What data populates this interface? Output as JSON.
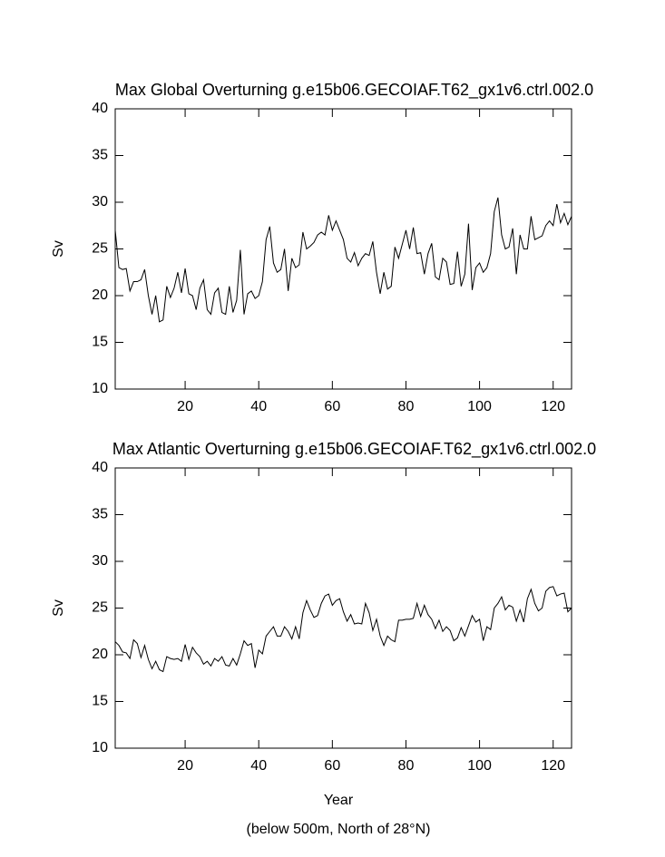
{
  "chart_data": [
    {
      "type": "line",
      "title": "Max Global Overturning g.e15b06.GECOIAF.T62_gx1v6.ctrl.002.0",
      "ylabel": "Sv",
      "xlim": [
        1,
        125
      ],
      "xticks": [
        20,
        40,
        60,
        80,
        100,
        120
      ],
      "ylim": [
        10,
        40
      ],
      "yticks": [
        10,
        15,
        20,
        25,
        30,
        35,
        40
      ],
      "series": [
        {
          "color": "#000000",
          "values": [
            27,
            23,
            22.8,
            22.9,
            20.5,
            21.5,
            21.5,
            21.7,
            22.8,
            20,
            18,
            20,
            17.2,
            17.4,
            21,
            19.8,
            20.8,
            22.5,
            20.3,
            22.9,
            20.2,
            20,
            18.5,
            20.8,
            21.7,
            18.5,
            18,
            20.3,
            20.8,
            18.2,
            18,
            21,
            18.2,
            19.5,
            24.9,
            18,
            20.2,
            20.5,
            19.7,
            20,
            21.5,
            26,
            27.4,
            23.5,
            22.5,
            22.8,
            25,
            20.5,
            24,
            23,
            23.3,
            26.8,
            25,
            25.3,
            25.7,
            26.5,
            26.8,
            26.5,
            28.6,
            27,
            28,
            27,
            26,
            24,
            23.6,
            24.6,
            23.2,
            24,
            24.5,
            24.3,
            25.8,
            22.5,
            20.2,
            22.5,
            20.7,
            21,
            25.2,
            24,
            25.5,
            27,
            25,
            27.3,
            24.5,
            24.6,
            22.3,
            24.5,
            25.6,
            22,
            21.7,
            24,
            23.6,
            21.2,
            21.3,
            24.7,
            21,
            22.3,
            27.7,
            20.6,
            23,
            23.5,
            22.5,
            23,
            24.5,
            29,
            30.5,
            26.5,
            25,
            25.2,
            27.2,
            22.3,
            26.5,
            25,
            25,
            28.5,
            26,
            26.2,
            26.4,
            27.5,
            28,
            27.5,
            29.8,
            27.8,
            28.8,
            27.6,
            28.5
          ]
        }
      ]
    },
    {
      "type": "line",
      "title": "Max Atlantic Overturning g.e15b06.GECOIAF.T62_gx1v6.ctrl.002.0",
      "ylabel": "Sv",
      "xlabel": "Year",
      "note": "(below 500m, North of 28°N)",
      "xlim": [
        1,
        125
      ],
      "xticks": [
        20,
        40,
        60,
        80,
        100,
        120
      ],
      "ylim": [
        10,
        40
      ],
      "yticks": [
        10,
        15,
        20,
        25,
        30,
        35,
        40
      ],
      "series": [
        {
          "color": "#000000",
          "values": [
            21.4,
            21,
            20.3,
            20.2,
            19.6,
            21.6,
            21.2,
            19.7,
            21,
            19.5,
            18.5,
            19.3,
            18.4,
            18.2,
            19.8,
            19.6,
            19.5,
            19.6,
            19.3,
            21.1,
            19.5,
            20.8,
            20.2,
            19.8,
            19,
            19.3,
            18.8,
            19.6,
            19.3,
            19.8,
            18.9,
            18.8,
            19.6,
            18.9,
            20.1,
            21.5,
            21,
            21.2,
            18.6,
            20.5,
            20.1,
            22,
            22.5,
            23,
            22,
            22,
            23,
            22.5,
            21.7,
            23,
            21.7,
            24.5,
            25.8,
            24.8,
            24,
            24.2,
            25.5,
            26.3,
            26.5,
            25.3,
            25.8,
            26,
            24.6,
            23.6,
            24.3,
            23.3,
            23.4,
            23.3,
            25.5,
            24.5,
            22.6,
            23.8,
            22,
            21,
            22,
            21.6,
            21.4,
            23.7,
            23.7,
            23.8,
            23.8,
            23.9,
            25.5,
            24.1,
            25.3,
            24.3,
            23.8,
            22.8,
            23.7,
            22.5,
            23,
            22.6,
            21.5,
            21.8,
            22.9,
            22,
            23.1,
            24.2,
            23.5,
            23.8,
            21.5,
            23,
            22.7,
            25,
            25.5,
            26.2,
            24.8,
            25.3,
            25.1,
            23.6,
            24.8,
            23.5,
            26,
            27,
            25.5,
            24.7,
            25,
            26.8,
            27.2,
            27.3,
            26.3,
            26.5,
            26.6,
            24.6,
            25
          ]
        }
      ]
    }
  ]
}
